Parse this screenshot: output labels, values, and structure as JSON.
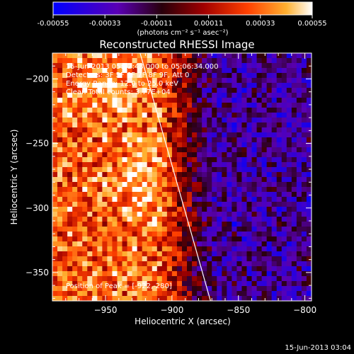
{
  "chart_data": {
    "type": "heatmap",
    "title": "Reconstructed RHESSI Image",
    "xlabel": "Heliocentric X (arcsec)",
    "ylabel": "Heliocentric Y (arcsec)",
    "xlim": [
      -990,
      -795
    ],
    "ylim": [
      -372,
      -180
    ],
    "x_ticks": [
      -950,
      -900,
      -850,
      -800
    ],
    "y_ticks": [
      -200,
      -250,
      -300,
      -350
    ],
    "x_tick_labels": [
      "−950",
      "−900",
      "−850",
      "−800"
    ],
    "y_tick_labels": [
      "−200",
      "−250",
      "−300",
      "−350"
    ],
    "colorbar": {
      "min": -0.00055,
      "max": 0.00055,
      "tick_labels": [
        "-0.00055",
        "-0.00033",
        "-0.00011",
        "0.00011",
        "0.00033",
        "0.00055"
      ],
      "unit_label": "(photons cm⁻² s⁻¹ asec⁻²)",
      "colormap": [
        "#0000ff",
        "#6a00d0",
        "#3a0018",
        "#b40000",
        "#ff5000",
        "#ffc040",
        "#ffffff"
      ]
    },
    "annotations": {
      "time_range": "15-Jun-2013 05:02:48.000 to 05:06:34.000",
      "detectors": "Detectors: 3F 5F 6F 7F 8F 9F, Att 0",
      "energy": "Energy Range: 12.0 to 25.0 keV",
      "clean": "Clean     Total counts: 3.77E+04",
      "peak": "Position of Peak = [-922,-280]"
    },
    "limb_line": {
      "x": [
        -924,
        -871
      ],
      "y": [
        -180,
        -372
      ],
      "color": "#ffffff"
    },
    "intensity_profile": {
      "description_free": true,
      "bright_region_x": [
        -990,
        -910
      ],
      "transition_x": [
        -910,
        -870
      ],
      "dim_region_x": [
        -870,
        -795
      ],
      "peak": [
        -922,
        -280
      ]
    },
    "footer_date": "15-Jun-2013 03:04"
  }
}
